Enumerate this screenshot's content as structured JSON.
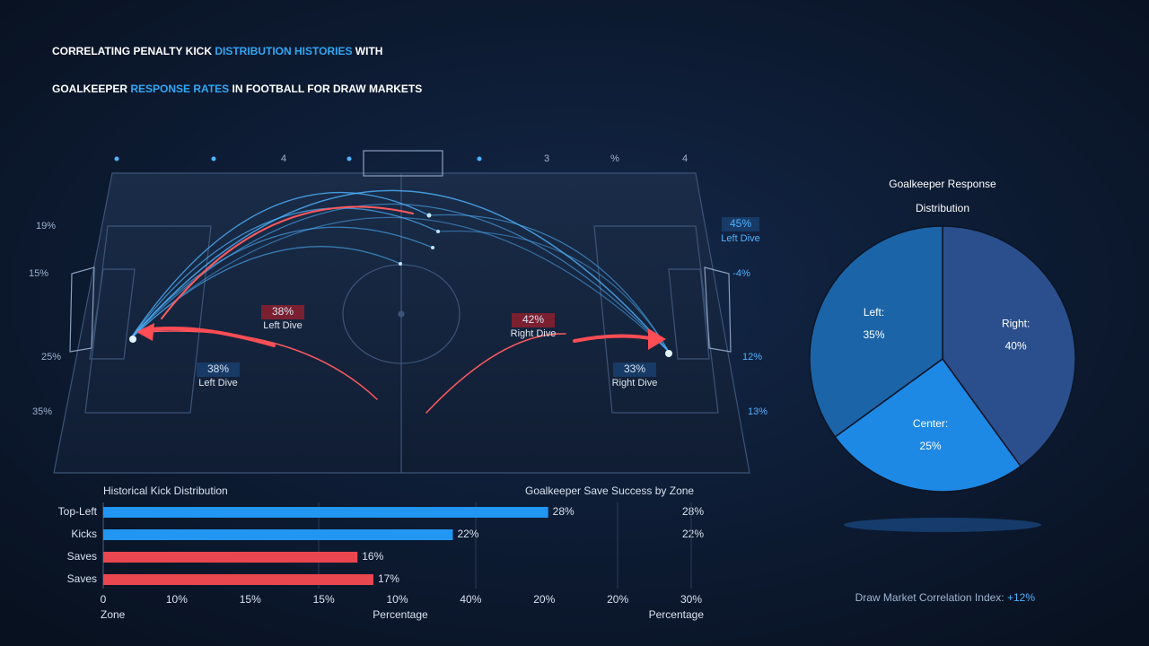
{
  "title_segments": [
    [
      {
        "text": "CORRELATING PENALTY KICK ",
        "highlight": false
      },
      {
        "text": "DISTRIBUTION HISTORIES",
        "highlight": true
      },
      {
        "text": " WITH",
        "highlight": false
      }
    ],
    [
      {
        "text": "GOALKEEPER ",
        "highlight": false
      },
      {
        "text": "RESPONSE RATES",
        "highlight": true
      },
      {
        "text": " IN FOOTBALL FOR DRAW MARKETS",
        "highlight": false
      }
    ]
  ],
  "pitch": {
    "top_labels": [
      "4",
      "3",
      "%",
      "4"
    ],
    "left_labels": [
      "19%",
      "15%",
      "25%",
      "35%"
    ],
    "right_labels": [
      "45%",
      "Left Dive",
      "-4%",
      "12%",
      "13%"
    ],
    "annotations": [
      {
        "value": "38%",
        "label": "Left Dive"
      },
      {
        "value": "38%",
        "label": "Left Dive"
      },
      {
        "value": "42%",
        "label": "Right Dive"
      },
      {
        "value": "33%",
        "label": "Right Dive"
      }
    ]
  },
  "save_success": {
    "title": "Goalkeeper Save Success by Zone",
    "values": [
      "28%",
      "22%"
    ]
  },
  "chart_data": [
    {
      "type": "bar",
      "title": "Historical Kick Distribution",
      "categories": [
        "Top-Left",
        "Kicks",
        "Saves",
        "Saves"
      ],
      "values": [
        28,
        22,
        16,
        17
      ],
      "value_labels": [
        "28%",
        "22%",
        "16%",
        "17%"
      ],
      "colors": [
        "#2196f3",
        "#2196f3",
        "#e8474f",
        "#e8474f"
      ],
      "xlim": [
        0,
        37
      ],
      "x_axis_labels": [
        "0",
        "10%",
        "15%",
        "15%",
        "10%",
        "40%",
        "20%",
        "20%",
        "30%"
      ],
      "x_axis_titles": [
        "Zone",
        "Percentage",
        "Percentage"
      ]
    },
    {
      "type": "pie",
      "title": "Goalkeeper Response Distribution",
      "categories": [
        "Right:",
        "Center:",
        "Left:"
      ],
      "values": [
        40,
        25,
        35
      ],
      "value_labels": [
        "40%",
        "25%",
        "35%"
      ],
      "colors": [
        "#2a4f8c",
        "#1e88e5",
        "#1c64a8"
      ]
    }
  ],
  "footer": {
    "label": "Draw Market Correlation Index: ",
    "value": "+12%"
  }
}
